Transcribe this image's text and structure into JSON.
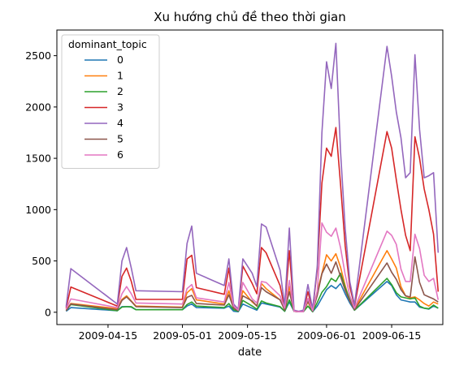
{
  "chart_data": {
    "type": "line",
    "title": "Xu hướng chủ đề theo thời gian",
    "xlabel": "date",
    "ylabel": "",
    "x_type": "date",
    "xlim": [
      "2009-04-04",
      "2009-06-26"
    ],
    "ylim": [
      -120,
      2750
    ],
    "y_ticks": [
      0,
      500,
      1000,
      1500,
      2000,
      2500
    ],
    "x_ticks": [
      "2009-04-15",
      "2009-05-01",
      "2009-05-15",
      "2009-06-01",
      "2009-06-15"
    ],
    "legend": {
      "title": "dominant_topic",
      "placement": "top-left"
    },
    "grid": false,
    "x": [
      "2009-04-06",
      "2009-04-07",
      "2009-04-17",
      "2009-04-18",
      "2009-04-19",
      "2009-04-20",
      "2009-04-21",
      "2009-05-01",
      "2009-05-02",
      "2009-05-03",
      "2009-05-04",
      "2009-05-10",
      "2009-05-11",
      "2009-05-12",
      "2009-05-13",
      "2009-05-14",
      "2009-05-16",
      "2009-05-17",
      "2009-05-18",
      "2009-05-19",
      "2009-05-22",
      "2009-05-23",
      "2009-05-24",
      "2009-05-25",
      "2009-05-26",
      "2009-05-27",
      "2009-05-28",
      "2009-05-29",
      "2009-05-30",
      "2009-05-31",
      "2009-06-01",
      "2009-06-02",
      "2009-06-03",
      "2009-06-04",
      "2009-06-05",
      "2009-06-06",
      "2009-06-07",
      "2009-06-14",
      "2009-06-15",
      "2009-06-16",
      "2009-06-17",
      "2009-06-18",
      "2009-06-19",
      "2009-06-20",
      "2009-06-21",
      "2009-06-22",
      "2009-06-23",
      "2009-06-24",
      "2009-06-25"
    ],
    "series": [
      {
        "name": "0",
        "color": "#1f77b4",
        "values": [
          10,
          45,
          15,
          55,
          55,
          50,
          25,
          25,
          60,
          80,
          45,
          40,
          60,
          10,
          5,
          80,
          40,
          20,
          90,
          80,
          50,
          10,
          100,
          10,
          5,
          5,
          60,
          5,
          60,
          140,
          220,
          260,
          230,
          280,
          180,
          90,
          20,
          300,
          260,
          170,
          120,
          110,
          100,
          100,
          50,
          40,
          30,
          60,
          40
        ]
      },
      {
        "name": "1",
        "color": "#ff7f0e",
        "values": [
          20,
          85,
          35,
          125,
          160,
          110,
          60,
          50,
          190,
          230,
          120,
          80,
          210,
          40,
          15,
          210,
          100,
          60,
          280,
          230,
          120,
          30,
          250,
          10,
          5,
          5,
          100,
          10,
          200,
          380,
          560,
          500,
          570,
          440,
          260,
          110,
          30,
          600,
          520,
          430,
          250,
          160,
          140,
          150,
          120,
          85,
          60,
          100,
          80
        ]
      },
      {
        "name": "2",
        "color": "#2ca02c",
        "values": [
          15,
          75,
          15,
          50,
          55,
          55,
          25,
          25,
          75,
          100,
          60,
          45,
          85,
          25,
          10,
          115,
          60,
          30,
          110,
          90,
          55,
          10,
          120,
          10,
          5,
          5,
          60,
          5,
          95,
          195,
          250,
          330,
          300,
          380,
          240,
          125,
          20,
          330,
          270,
          190,
          150,
          140,
          130,
          140,
          60,
          40,
          35,
          70,
          40
        ]
      },
      {
        "name": "3",
        "color": "#d62728",
        "values": [
          40,
          245,
          60,
          350,
          430,
          300,
          125,
          125,
          520,
          555,
          240,
          175,
          430,
          60,
          20,
          450,
          280,
          180,
          630,
          580,
          260,
          40,
          600,
          10,
          5,
          10,
          200,
          20,
          420,
          1260,
          1600,
          1520,
          1800,
          1250,
          650,
          250,
          60,
          1760,
          1600,
          1290,
          1000,
          750,
          600,
          1710,
          1500,
          1200,
          1000,
          760,
          200
        ]
      },
      {
        "name": "4",
        "color": "#9467bd",
        "values": [
          55,
          425,
          80,
          500,
          630,
          430,
          210,
          200,
          670,
          840,
          380,
          260,
          520,
          80,
          30,
          520,
          380,
          250,
          860,
          830,
          410,
          60,
          820,
          20,
          10,
          20,
          270,
          30,
          450,
          1750,
          2440,
          2180,
          2620,
          1570,
          820,
          300,
          70,
          2590,
          2300,
          1950,
          1700,
          1310,
          1360,
          2510,
          1780,
          1310,
          1330,
          1360,
          580
        ]
      },
      {
        "name": "5",
        "color": "#8c564b",
        "values": [
          15,
          80,
          25,
          115,
          150,
          105,
          55,
          45,
          145,
          165,
          85,
          70,
          170,
          40,
          15,
          160,
          110,
          60,
          240,
          200,
          120,
          20,
          200,
          10,
          5,
          5,
          110,
          10,
          165,
          375,
          470,
          380,
          490,
          350,
          215,
          110,
          25,
          480,
          390,
          320,
          220,
          160,
          150,
          540,
          290,
          170,
          150,
          130,
          100
        ]
      },
      {
        "name": "6",
        "color": "#e377c2",
        "values": [
          30,
          130,
          45,
          180,
          250,
          180,
          90,
          80,
          230,
          270,
          140,
          100,
          290,
          60,
          20,
          290,
          130,
          90,
          300,
          290,
          160,
          40,
          310,
          10,
          5,
          5,
          135,
          15,
          210,
          870,
          780,
          740,
          820,
          630,
          370,
          160,
          40,
          790,
          750,
          660,
          420,
          300,
          300,
          760,
          620,
          360,
          300,
          330,
          120
        ]
      }
    ]
  }
}
